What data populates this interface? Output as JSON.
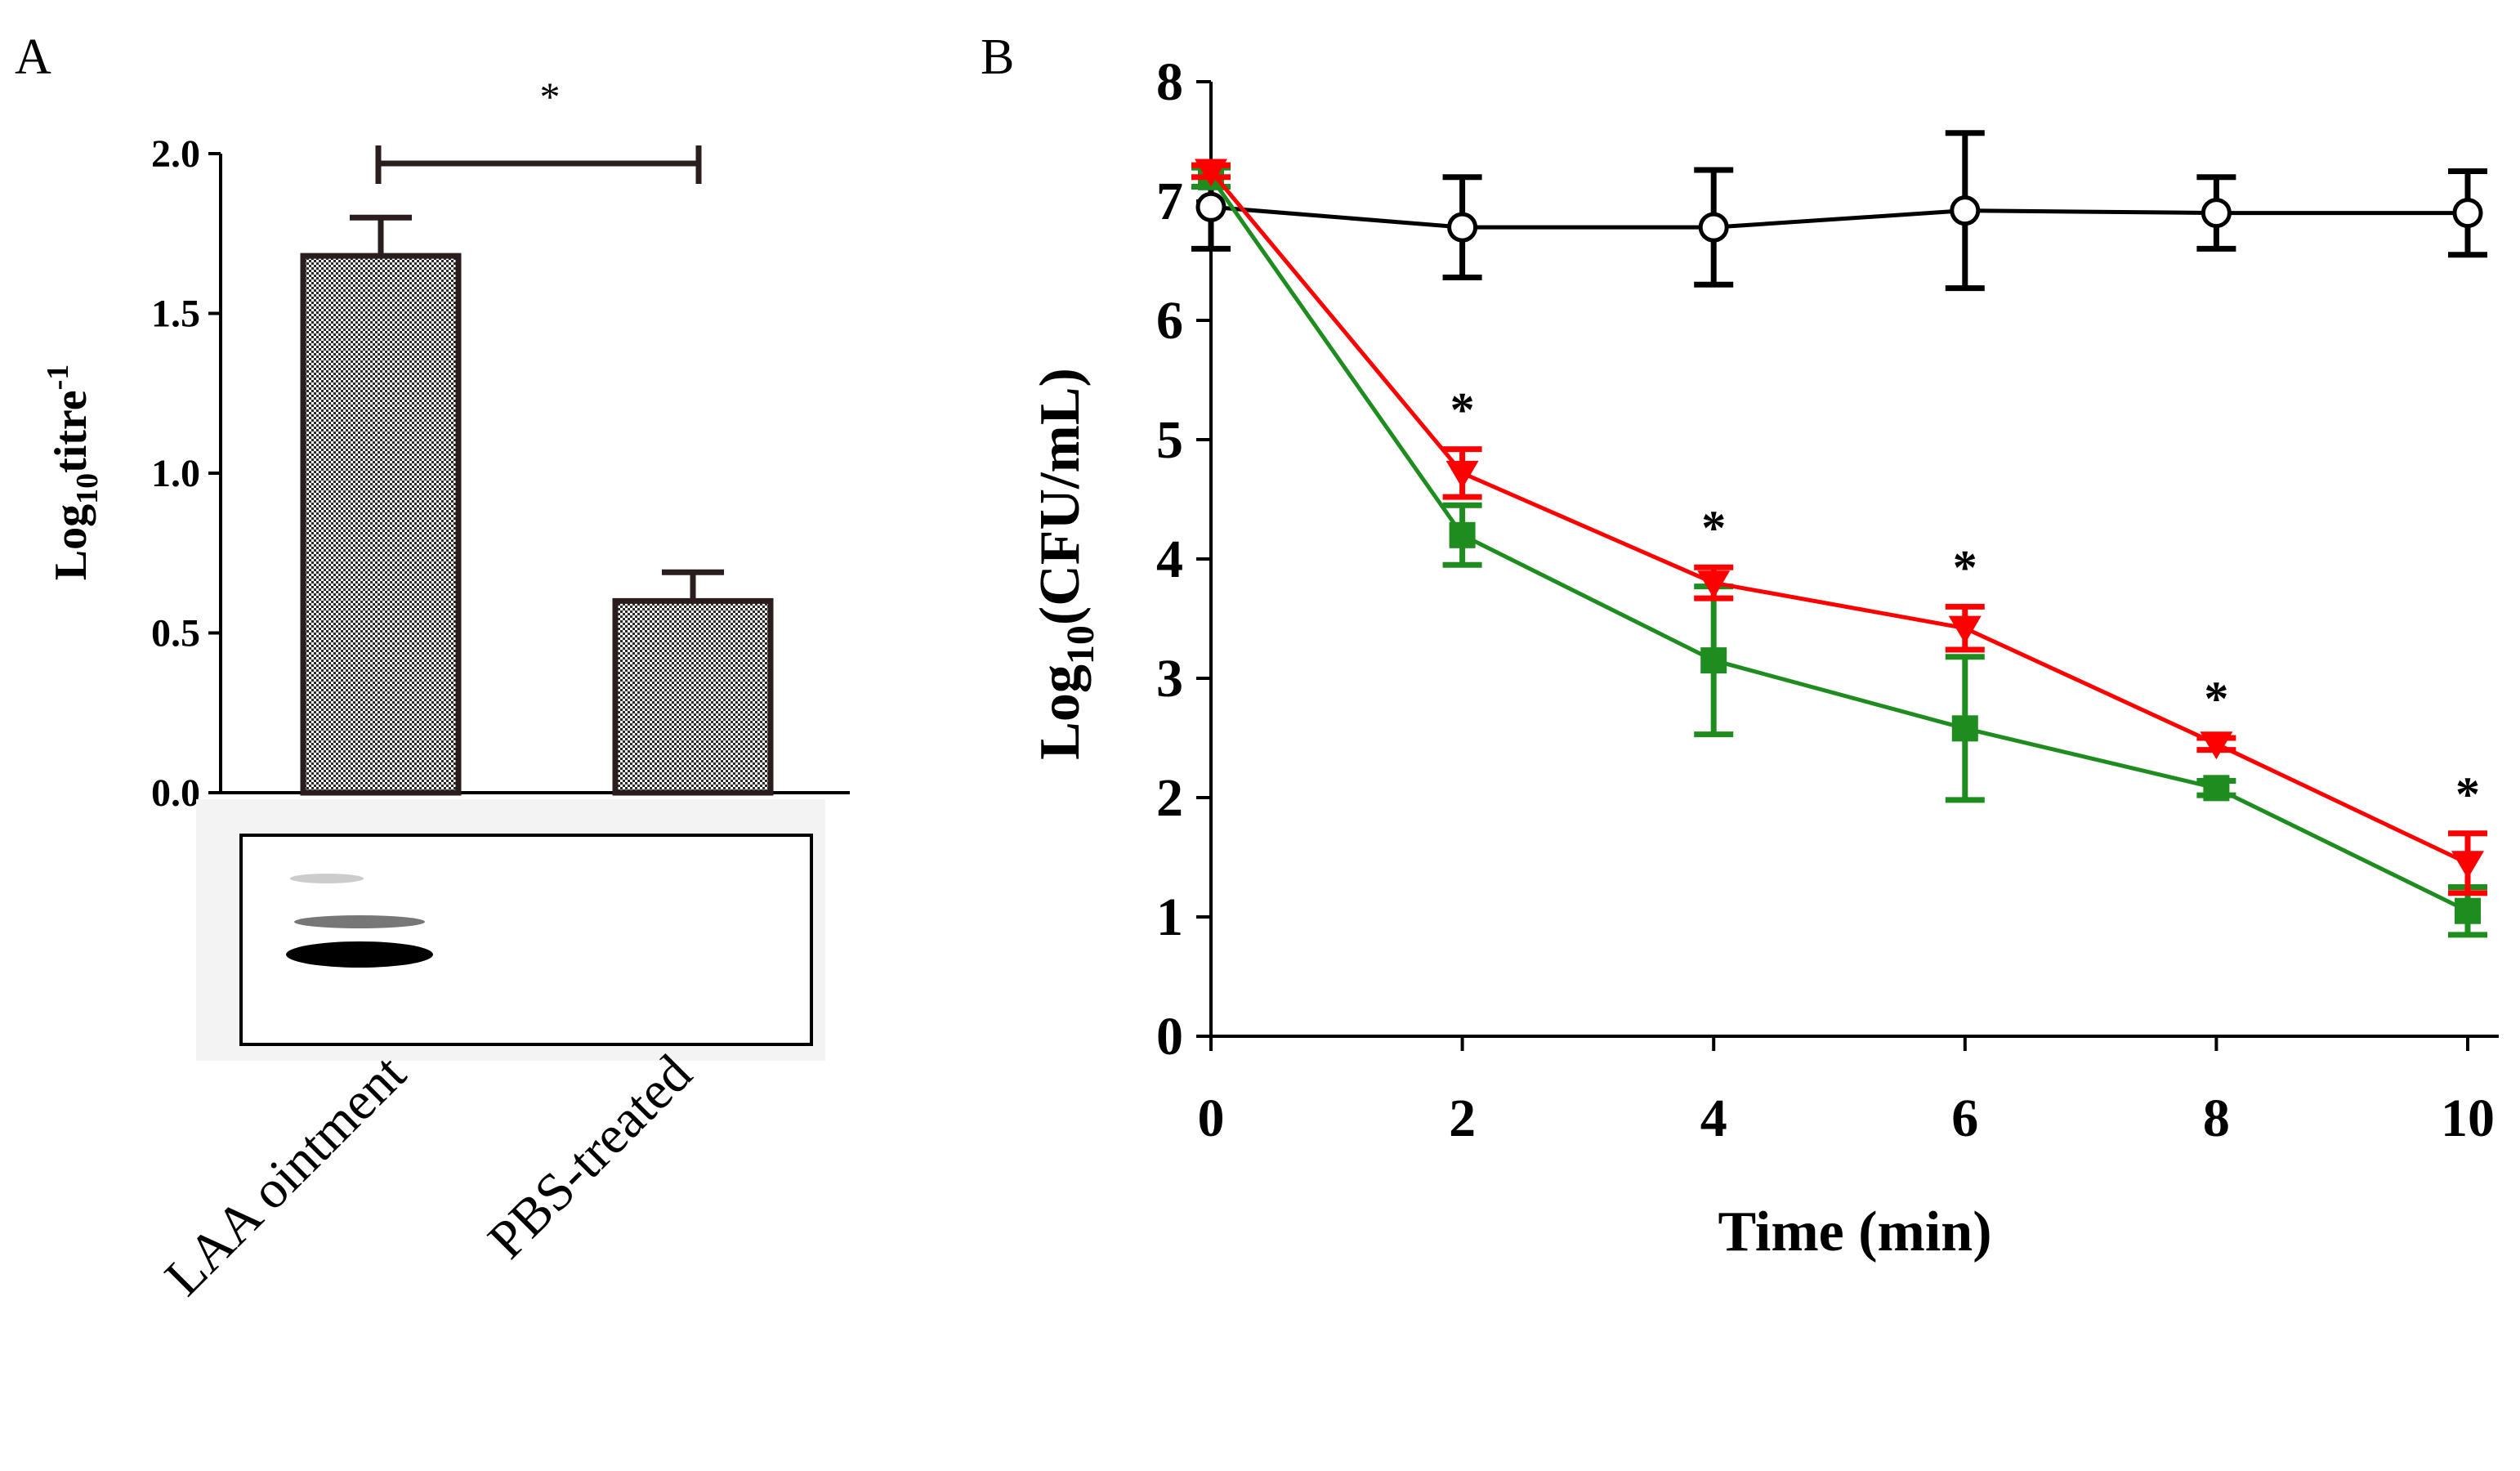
{
  "panels": {
    "a_label": "A",
    "b_label": "B"
  },
  "colors": {
    "black": "#000000",
    "red": "#ff0000",
    "green": "#1e8c1e",
    "bar_border": "#2a1d1d"
  },
  "chart_data": [
    {
      "id": "panel-a",
      "type": "bar",
      "title": "",
      "xlabel": "",
      "ylabel_main": "Log",
      "ylabel_sub": "10",
      "ylabel_tail": "titre",
      "ylabel_sup": "-1",
      "categories": [
        "LAA ointment",
        "PBS-treated"
      ],
      "values": [
        1.68,
        0.6
      ],
      "errors": [
        0.12,
        0.09
      ],
      "ylim": [
        0,
        2.0
      ],
      "yticks": [
        "0.0",
        "0.5",
        "1.0",
        "1.5",
        "2.0"
      ],
      "significance": "*",
      "inset": "western blot image: strong band under LAA ointment, no band under PBS-treated"
    },
    {
      "id": "panel-b",
      "type": "line",
      "title": "",
      "xlabel": "Time (min)",
      "ylabel_main": "Log",
      "ylabel_sub": "10",
      "ylabel_tail": "(CFU/mL)",
      "x": [
        0,
        2,
        4,
        6,
        8,
        10
      ],
      "xticks": [
        "0",
        "2",
        "4",
        "6",
        "8",
        "10"
      ],
      "yticks": [
        "0",
        "1",
        "2",
        "3",
        "4",
        "5",
        "6",
        "7",
        "8"
      ],
      "xlim": [
        0,
        10
      ],
      "ylim": [
        0,
        8
      ],
      "series": [
        {
          "name": "control (open circle)",
          "color": "#000000",
          "marker": "circle-open",
          "values": [
            6.95,
            6.78,
            6.78,
            6.92,
            6.9,
            6.9
          ],
          "errors": [
            0.35,
            0.42,
            0.48,
            0.65,
            0.3,
            0.35
          ]
        },
        {
          "name": "red (down triangle)",
          "color": "#ff0000",
          "marker": "triangle-down",
          "values": [
            7.25,
            4.72,
            3.8,
            3.42,
            2.45,
            1.45
          ],
          "errors": [
            0.05,
            0.2,
            0.13,
            0.18,
            0.05,
            0.25
          ]
        },
        {
          "name": "green (square)",
          "color": "#1e8c1e",
          "marker": "square",
          "values": [
            7.2,
            4.2,
            3.15,
            2.58,
            2.08,
            1.05
          ],
          "errors": [
            0.08,
            0.25,
            0.62,
            0.6,
            0.06,
            0.2
          ]
        }
      ],
      "significance_points": [
        2,
        4,
        6,
        8,
        10
      ],
      "significance_label": "*"
    }
  ]
}
